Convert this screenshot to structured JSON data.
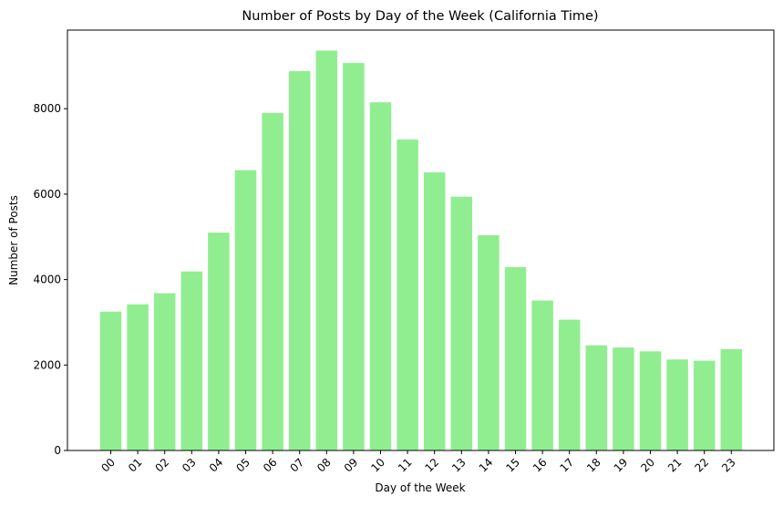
{
  "chart_data": {
    "type": "bar",
    "title": "Number of Posts by Day of the Week (California Time)",
    "xlabel": "Day of the Week",
    "ylabel": "Number of Posts",
    "categories": [
      "00",
      "01",
      "02",
      "03",
      "04",
      "05",
      "06",
      "07",
      "08",
      "09",
      "10",
      "11",
      "12",
      "13",
      "14",
      "15",
      "16",
      "17",
      "18",
      "19",
      "20",
      "21",
      "22",
      "23"
    ],
    "values": [
      3250,
      3420,
      3680,
      4190,
      5100,
      6560,
      7900,
      8880,
      9360,
      9070,
      8150,
      7280,
      6510,
      5940,
      5040,
      4290,
      3510,
      3060,
      2460,
      2410,
      2320,
      2130,
      2100,
      2370
    ],
    "ylim": [
      0,
      9840
    ],
    "yticks": [
      0,
      2000,
      4000,
      6000,
      8000
    ],
    "ytick_labels": [
      "0",
      "2000",
      "4000",
      "6000",
      "8000"
    ],
    "bar_color": "#90ee90",
    "grid": false,
    "legend": "none"
  }
}
